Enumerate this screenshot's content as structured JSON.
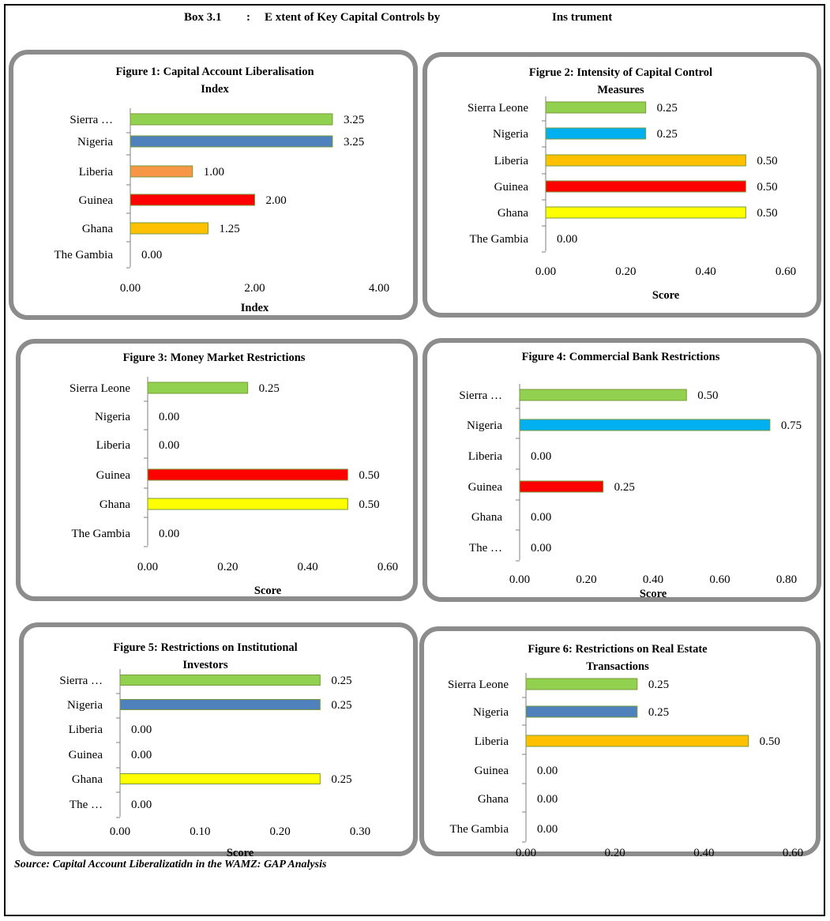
{
  "header": {
    "box_label": "Box 3.1",
    "colon": ":",
    "title_part1": "E xtent of Key Capital Controls by",
    "title_part2": "Ins trument"
  },
  "source_note": "Source: Capital Account Liberalizatidn in the WAMZ: GAP Analysis",
  "chart_data": [
    {
      "type": "bar",
      "title_lines": [
        "Figure 1: Capital Account  Liberalisation",
        "Index"
      ],
      "xlabel": "Index",
      "categories": [
        "Sierra …",
        "Nigeria",
        "Liberia",
        "Guinea",
        "Ghana",
        "The Gambia"
      ],
      "values": [
        3.25,
        3.25,
        1.0,
        2.0,
        1.25,
        0.0
      ],
      "value_labels": [
        "3.25",
        "3.25",
        "1.00",
        "2.00",
        "1.25",
        "0.00"
      ],
      "colors": [
        "#92d050",
        "#4f81bd",
        "#f79646",
        "#ff0000",
        "#ffc000",
        "#ffffff"
      ],
      "xlim": [
        0,
        4
      ],
      "xticks": [
        "0.00",
        "2.00",
        "4.00"
      ]
    },
    {
      "type": "bar",
      "title_lines": [
        "Figrue 2: Intensity of Capital Control",
        "Measures"
      ],
      "xlabel": "Score",
      "categories": [
        "Sierra Leone",
        "Nigeria",
        "Liberia",
        "Guinea",
        "Ghana",
        "The Gambia"
      ],
      "values": [
        0.25,
        0.25,
        0.5,
        0.5,
        0.5,
        0.0
      ],
      "value_labels": [
        "0.25",
        "0.25",
        "0.50",
        "0.50",
        "0.50",
        "0.00"
      ],
      "colors": [
        "#92d050",
        "#00b0f0",
        "#ffc000",
        "#ff0000",
        "#ffff00",
        "#ffffff"
      ],
      "xlim": [
        0,
        0.6
      ],
      "xticks": [
        "0.00",
        "0.20",
        "0.40",
        "0.60"
      ]
    },
    {
      "type": "bar",
      "title_lines": [
        "Figure 3: Money Market Restrictions"
      ],
      "xlabel": "Score",
      "categories": [
        "Sierra Leone",
        "Nigeria",
        "Liberia",
        "Guinea",
        "Ghana",
        "The Gambia"
      ],
      "values": [
        0.25,
        0.0,
        0.0,
        0.5,
        0.5,
        0.0
      ],
      "value_labels": [
        "0.25",
        "0.00",
        "0.00",
        "0.50",
        "0.50",
        "0.00"
      ],
      "colors": [
        "#92d050",
        "#ffffff",
        "#ffffff",
        "#ff0000",
        "#ffff00",
        "#ffffff"
      ],
      "xlim": [
        0,
        0.6
      ],
      "xticks": [
        "0.00",
        "0.20",
        "0.40",
        "0.60"
      ]
    },
    {
      "type": "bar",
      "title_lines": [
        "Figure 4: Commercial Bank Restrictions"
      ],
      "xlabel": "Score",
      "categories": [
        "Sierra …",
        "Nigeria",
        "Liberia",
        "Guinea",
        "Ghana",
        "The …"
      ],
      "values": [
        0.5,
        0.75,
        0.0,
        0.25,
        0.0,
        0.0
      ],
      "value_labels": [
        "0.50",
        "0.75",
        "0.00",
        "0.25",
        "0.00",
        "0.00"
      ],
      "colors": [
        "#92d050",
        "#00b0f0",
        "#ffffff",
        "#ff0000",
        "#ffffff",
        "#ffffff"
      ],
      "xlim": [
        0,
        0.8
      ],
      "xticks": [
        "0.00",
        "0.20",
        "0.40",
        "0.60",
        "0.80"
      ]
    },
    {
      "type": "bar",
      "title_lines": [
        "Figure 5: Restrictions on Institutional",
        "Investors"
      ],
      "xlabel": "Score",
      "categories": [
        "Sierra …",
        "Nigeria",
        "Liberia",
        "Guinea",
        "Ghana",
        "The …"
      ],
      "values": [
        0.25,
        0.25,
        0.0,
        0.0,
        0.25,
        0.0
      ],
      "value_labels": [
        "0.25",
        "0.25",
        "0.00",
        "0.00",
        "0.25",
        "0.00"
      ],
      "colors": [
        "#92d050",
        "#4f81bd",
        "#ffffff",
        "#ffffff",
        "#ffff00",
        "#ffffff"
      ],
      "xlim": [
        0,
        0.3
      ],
      "xticks": [
        "0.00",
        "0.10",
        "0.20",
        "0.30"
      ]
    },
    {
      "type": "bar",
      "title_lines": [
        "Figure 6: Restrictions on Real Estate",
        "Transactions"
      ],
      "xlabel": "Score",
      "categories": [
        "Sierra Leone",
        "Nigeria",
        "Liberia",
        "Guinea",
        "Ghana",
        "The Gambia"
      ],
      "values": [
        0.25,
        0.25,
        0.5,
        0.0,
        0.0,
        0.0
      ],
      "value_labels": [
        "0.25",
        "0.25",
        "0.50",
        "0.00",
        "0.00",
        "0.00"
      ],
      "colors": [
        "#92d050",
        "#4f81bd",
        "#ffc000",
        "#ffffff",
        "#ffffff",
        "#ffffff"
      ],
      "xlim": [
        0,
        0.6
      ],
      "xticks": [
        "0.00",
        "0.20",
        "0.40",
        "0.60"
      ]
    }
  ]
}
